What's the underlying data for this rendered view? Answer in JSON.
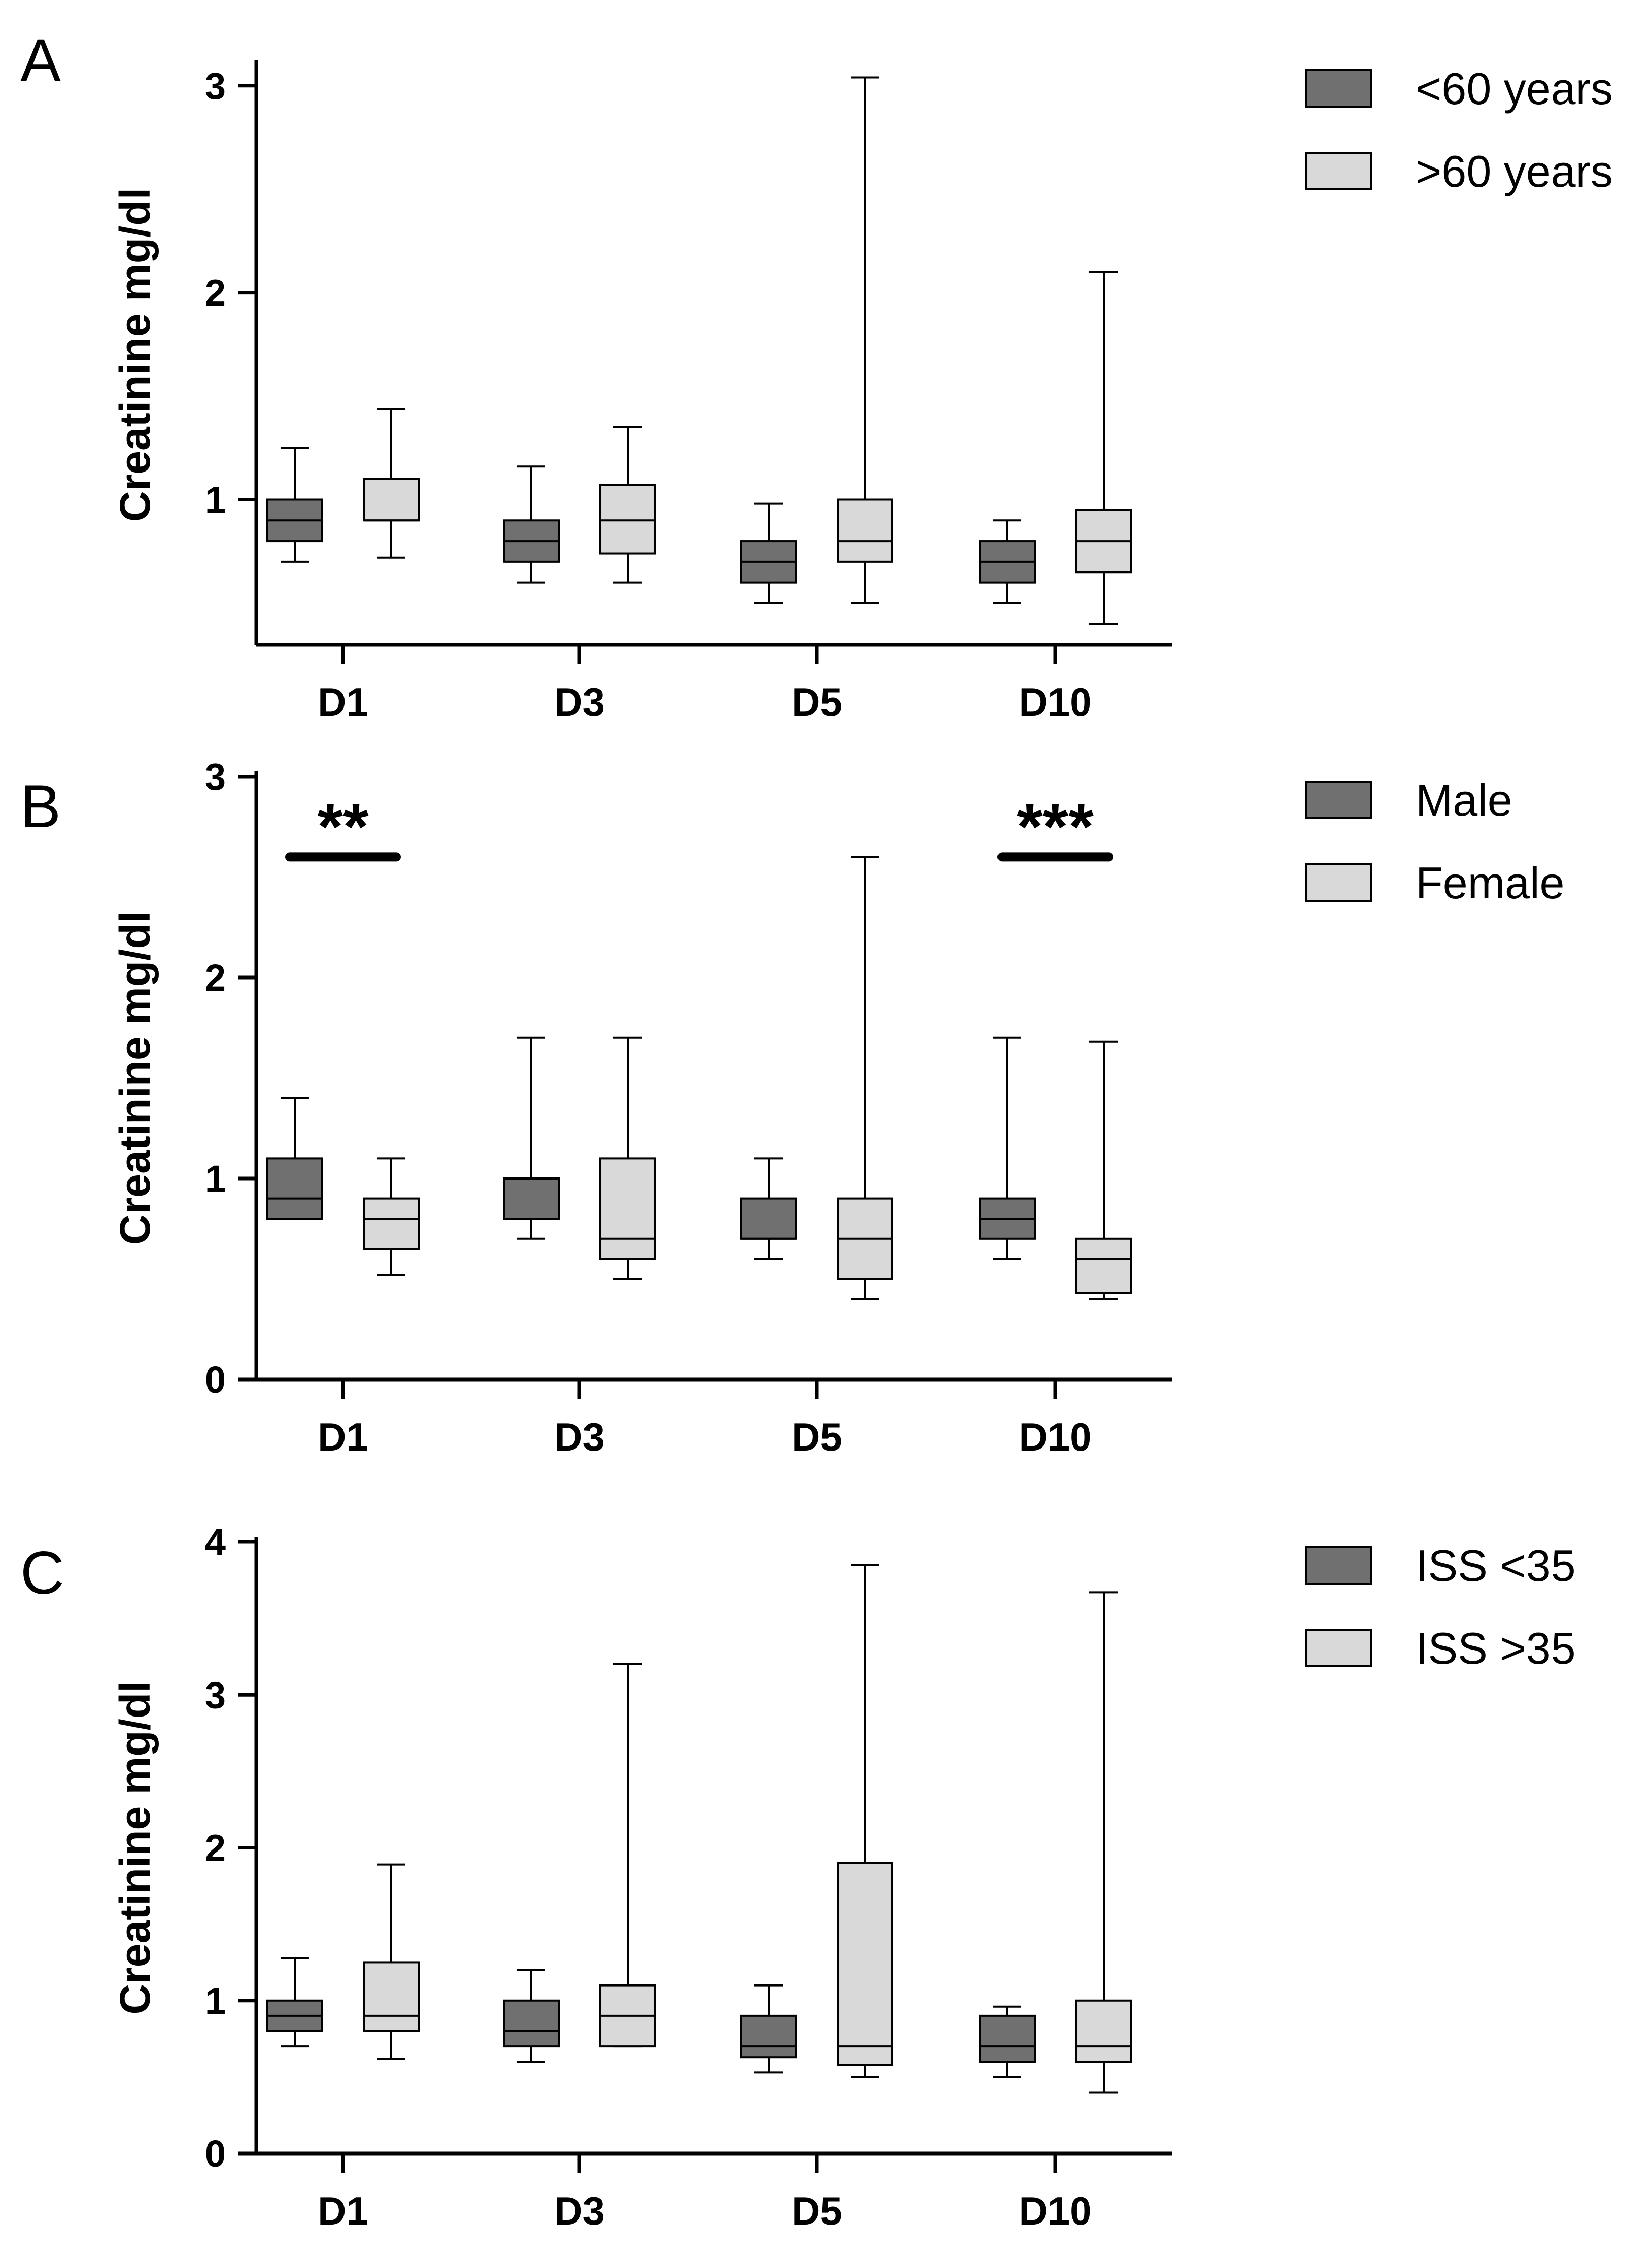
{
  "figure": {
    "colors": {
      "group1": "#707070",
      "group2": "#d9d9d9",
      "stroke": "#000000"
    }
  },
  "chart_data": [
    {
      "type": "box",
      "panel_label": "A",
      "ylabel": "Creatinine mg/dl",
      "ylim": [
        0.3,
        3.1
      ],
      "yticks": [
        1,
        2,
        3
      ],
      "y_tick_labels": [
        "1",
        "2",
        "3"
      ],
      "categories": [
        "D1",
        "D3",
        "D5",
        "D10"
      ],
      "series": [
        {
          "name": "<60 years",
          "boxes": [
            {
              "min": 0.7,
              "q1": 0.8,
              "median": 0.9,
              "q3": 1.0,
              "max": 1.25
            },
            {
              "min": 0.6,
              "q1": 0.7,
              "median": 0.8,
              "q3": 0.9,
              "max": 1.16
            },
            {
              "min": 0.5,
              "q1": 0.6,
              "median": 0.7,
              "q3": 0.8,
              "max": 0.98
            },
            {
              "min": 0.5,
              "q1": 0.6,
              "median": 0.7,
              "q3": 0.8,
              "max": 0.9
            }
          ]
        },
        {
          "name": ">60 years",
          "boxes": [
            {
              "min": 0.72,
              "q1": 0.9,
              "median": 0.9,
              "q3": 1.1,
              "max": 1.44
            },
            {
              "min": 0.6,
              "q1": 0.74,
              "median": 0.9,
              "q3": 1.07,
              "max": 1.35
            },
            {
              "min": 0.5,
              "q1": 0.7,
              "median": 0.8,
              "q3": 1.0,
              "max": 3.04
            },
            {
              "min": 0.4,
              "q1": 0.65,
              "median": 0.8,
              "q3": 0.95,
              "max": 2.1
            }
          ]
        }
      ],
      "significance": []
    },
    {
      "type": "box",
      "panel_label": "B",
      "ylabel": "Creatinine mg/dl",
      "ylim": [
        0,
        3
      ],
      "yticks": [
        0,
        1,
        2,
        3
      ],
      "y_tick_labels": [
        "0",
        "1",
        "2",
        "3"
      ],
      "categories": [
        "D1",
        "D3",
        "D5",
        "D10"
      ],
      "series": [
        {
          "name": "Male",
          "boxes": [
            {
              "min": 0.8,
              "q1": 0.8,
              "median": 0.9,
              "q3": 1.1,
              "max": 1.4
            },
            {
              "min": 0.7,
              "q1": 0.8,
              "median": 0.8,
              "q3": 1.0,
              "max": 1.7
            },
            {
              "min": 0.6,
              "q1": 0.7,
              "median": 0.7,
              "q3": 0.9,
              "max": 1.1
            },
            {
              "min": 0.6,
              "q1": 0.7,
              "median": 0.8,
              "q3": 0.9,
              "max": 1.7
            }
          ]
        },
        {
          "name": "Female",
          "boxes": [
            {
              "min": 0.52,
              "q1": 0.65,
              "median": 0.8,
              "q3": 0.9,
              "max": 1.1
            },
            {
              "min": 0.5,
              "q1": 0.6,
              "median": 0.7,
              "q3": 1.1,
              "max": 1.7
            },
            {
              "min": 0.4,
              "q1": 0.5,
              "median": 0.7,
              "q3": 0.9,
              "max": 2.6
            },
            {
              "min": 0.4,
              "q1": 0.43,
              "median": 0.6,
              "q3": 0.7,
              "max": 1.68
            }
          ]
        }
      ],
      "significance": [
        {
          "category": "D1",
          "label": "**",
          "y": 2.6
        },
        {
          "category": "D10",
          "label": "***",
          "y": 2.6
        }
      ]
    },
    {
      "type": "box",
      "panel_label": "C",
      "ylabel": "Creatinine mg/dl",
      "ylim": [
        0,
        4
      ],
      "yticks": [
        0,
        1,
        2,
        3,
        4
      ],
      "y_tick_labels": [
        "0",
        "1",
        "2",
        "3",
        "4"
      ],
      "categories": [
        "D1",
        "D3",
        "D5",
        "D10"
      ],
      "series": [
        {
          "name": "ISS <35",
          "boxes": [
            {
              "min": 0.7,
              "q1": 0.8,
              "median": 0.9,
              "q3": 1.0,
              "max": 1.28
            },
            {
              "min": 0.6,
              "q1": 0.7,
              "median": 0.8,
              "q3": 1.0,
              "max": 1.2
            },
            {
              "min": 0.53,
              "q1": 0.63,
              "median": 0.7,
              "q3": 0.9,
              "max": 1.1
            },
            {
              "min": 0.5,
              "q1": 0.6,
              "median": 0.7,
              "q3": 0.9,
              "max": 0.96
            }
          ]
        },
        {
          "name": "ISS >35",
          "boxes": [
            {
              "min": 0.62,
              "q1": 0.8,
              "median": 0.9,
              "q3": 1.25,
              "max": 1.89
            },
            {
              "min": 0.7,
              "q1": 0.7,
              "median": 0.9,
              "q3": 1.1,
              "max": 3.2
            },
            {
              "min": 0.5,
              "q1": 0.58,
              "median": 0.7,
              "q3": 1.9,
              "max": 3.85
            },
            {
              "min": 0.4,
              "q1": 0.6,
              "median": 0.7,
              "q3": 1.0,
              "max": 3.67
            }
          ]
        }
      ],
      "significance": []
    }
  ]
}
